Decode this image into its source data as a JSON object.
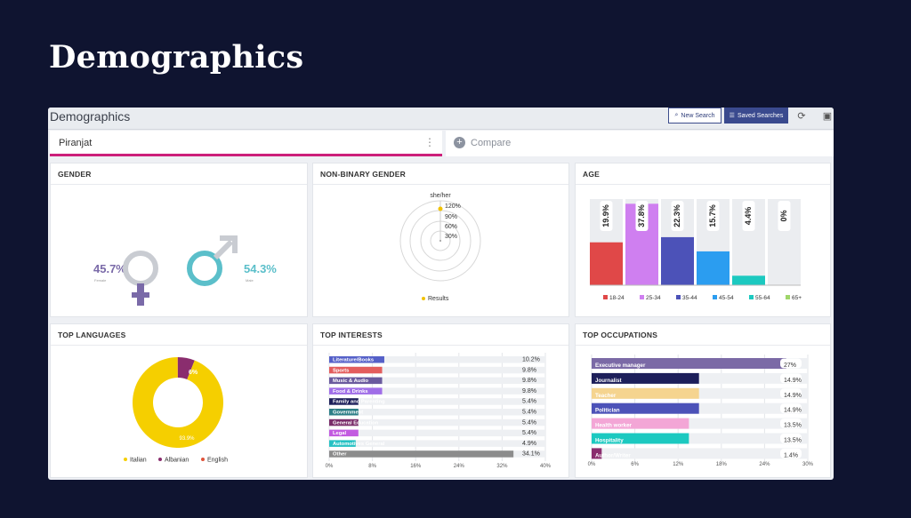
{
  "slide": {
    "title": "Demographics"
  },
  "app": {
    "title": "Demographics",
    "new_search": "New Search",
    "saved_searches": "Saved Searches"
  },
  "tabs": {
    "active": "Piranjat",
    "compare": "Compare"
  },
  "gender": {
    "title": "GENDER",
    "female_pct": "45.7%",
    "female_label": "Female",
    "male_pct": "54.3%",
    "male_label": "Male",
    "colors": {
      "female": "#7a6aa8",
      "male": "#5bbfca",
      "ring": "#c9ccd2"
    }
  },
  "nonbinary": {
    "title": "NON-BINARY GENDER",
    "axis_label": "she/her",
    "ticks": [
      "120%",
      "90%",
      "60%",
      "30%"
    ],
    "legend": "Results",
    "color": "#f2c200"
  },
  "age": {
    "title": "AGE",
    "chart_data": {
      "type": "bar",
      "categories": [
        "18-24",
        "25-34",
        "35-44",
        "45-54",
        "55-64",
        "65+"
      ],
      "values": [
        19.9,
        37.8,
        22.3,
        15.7,
        4.4,
        0
      ],
      "labels": [
        "19.9%",
        "37.8%",
        "22.3%",
        "15.7%",
        "4.4%",
        "0%"
      ],
      "colors": [
        "#e04848",
        "#cf7ff0",
        "#4c52b8",
        "#2b9df0",
        "#1cc9c0",
        "#9fd66a"
      ],
      "ylim": [
        0,
        40
      ]
    }
  },
  "languages": {
    "title": "TOP LANGUAGES",
    "chart_data": {
      "type": "pie",
      "categories": [
        "Italian",
        "Albanian",
        "English"
      ],
      "values": [
        93.9,
        6,
        0.1
      ],
      "labels": [
        "93.9%",
        "6%",
        ""
      ],
      "colors": [
        "#f5cf00",
        "#8a2d6e",
        "#e0533a"
      ]
    }
  },
  "interests": {
    "title": "TOP INTERESTS",
    "chart_data": {
      "type": "bar",
      "categories": [
        "Literature/Books",
        "Sports",
        "Music & Audio",
        "Food & Drinks",
        "Family and Parenting",
        "Government",
        "General Education",
        "Legal",
        "Automotives General",
        "Other"
      ],
      "values": [
        10.2,
        9.8,
        9.8,
        9.8,
        5.4,
        5.4,
        5.4,
        5.4,
        4.9,
        34.1
      ],
      "labels": [
        "10.2%",
        "9.8%",
        "9.8%",
        "9.8%",
        "5.4%",
        "5.4%",
        "5.4%",
        "5.4%",
        "4.9%",
        "34.1%"
      ],
      "colors": [
        "#5560c8",
        "#e35d5d",
        "#6a5a9e",
        "#a06ee8",
        "#1d1f5a",
        "#2e7f87",
        "#7a2d6a",
        "#c25be0",
        "#27c2c4",
        "#8c8c8c"
      ],
      "ticks": [
        "0%",
        "8%",
        "16%",
        "24%",
        "32%",
        "40%"
      ],
      "xlim": [
        0,
        40
      ]
    }
  },
  "occupations": {
    "title": "TOP OCCUPATIONS",
    "chart_data": {
      "type": "bar",
      "categories": [
        "Executive manager",
        "Journalist",
        "Teacher",
        "Politician",
        "Health worker",
        "Hospitality",
        "Author/Writer"
      ],
      "values": [
        27,
        14.9,
        14.9,
        14.9,
        13.5,
        13.5,
        1.4
      ],
      "labels": [
        "27%",
        "14.9%",
        "14.9%",
        "14.9%",
        "13.5%",
        "13.5%",
        "1.4%"
      ],
      "colors": [
        "#7b6aa6",
        "#1d1f5a",
        "#f5d48f",
        "#4c52b8",
        "#f3a6d6",
        "#1cc9c0",
        "#8a2d6e"
      ],
      "ticks": [
        "0%",
        "6%",
        "12%",
        "18%",
        "24%",
        "30%"
      ],
      "xlim": [
        0,
        30
      ]
    }
  }
}
